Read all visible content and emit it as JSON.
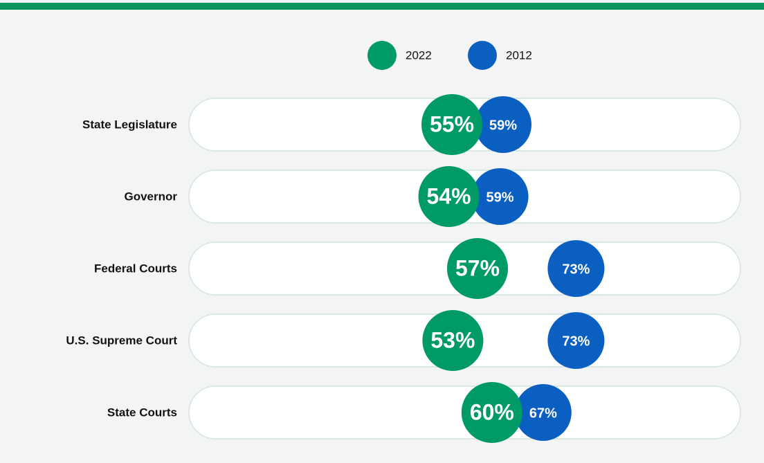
{
  "chart_data": {
    "type": "dot",
    "categories": [
      "State Legislature",
      "Governor",
      "Federal Courts",
      "U.S. Supreme Court",
      "State Courts"
    ],
    "series": [
      {
        "name": "2022",
        "color": "#009a64",
        "values": [
          55,
          54,
          57,
          53,
          60
        ],
        "value_labels": [
          "55%",
          "54%",
          "57%",
          "53%",
          "60%"
        ]
      },
      {
        "name": "2012",
        "color": "#0b5fc0",
        "values": [
          59,
          59,
          73,
          73,
          67
        ],
        "value_labels": [
          "59%",
          "59%",
          "73%",
          "73%",
          "67%"
        ]
      }
    ]
  }
}
